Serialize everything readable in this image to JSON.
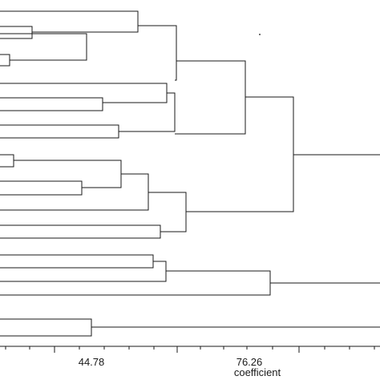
{
  "chart_data": {
    "type": "dendrogram",
    "x_axis": {
      "label": "coefficient",
      "ticks": [
        "44.78",
        "76.26"
      ]
    },
    "grid": false,
    "legend": "none"
  }
}
